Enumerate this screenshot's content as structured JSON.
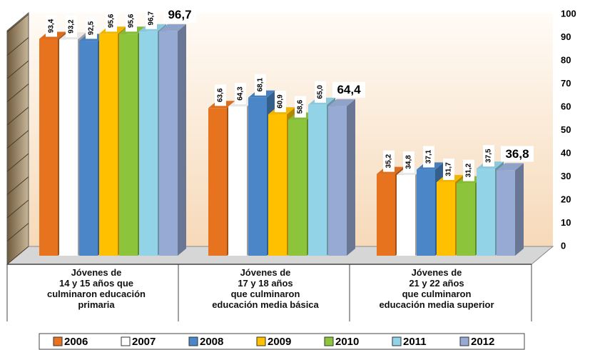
{
  "chart_data": {
    "type": "bar3d",
    "categories": [
      "Jóvenes de\n14 y 15 años que\nculminaron educación\nprimaria",
      "Jóvenes de\n17 y 18 años\nque culminaron\neducación media básica",
      "Jóvenes de\n21 y 22 años\nque culminaron\neducación media superior"
    ],
    "series": [
      {
        "name": "2006",
        "color": "#e8731f",
        "values": [
          93.4,
          63.6,
          35.2
        ],
        "value_labels": [
          "93,4",
          "63,6",
          "35,2"
        ]
      },
      {
        "name": "2007",
        "color": "#ffffff",
        "values": [
          93.2,
          64.3,
          34.8
        ],
        "value_labels": [
          "93,2",
          "64,3",
          "34,8"
        ]
      },
      {
        "name": "2008",
        "color": "#4a86c8",
        "values": [
          92.5,
          68.1,
          37.1
        ],
        "value_labels": [
          "92,5",
          "68,1",
          "37,1"
        ]
      },
      {
        "name": "2009",
        "color": "#ffc000",
        "values": [
          95.6,
          60.9,
          31.7
        ],
        "value_labels": [
          "95,6",
          "60,9",
          "31,7"
        ]
      },
      {
        "name": "2010",
        "color": "#8cc43c",
        "values": [
          95.6,
          58.6,
          31.2
        ],
        "value_labels": [
          "95,6",
          "58,6",
          "31,2"
        ]
      },
      {
        "name": "2011",
        "color": "#92d3e8",
        "values": [
          96.7,
          65.0,
          37.5
        ],
        "value_labels": [
          "96,7",
          "65,0",
          "37,5"
        ]
      },
      {
        "name": "2012",
        "color": "#97aad4",
        "values": [
          96.7,
          64.4,
          36.8
        ],
        "value_labels": [
          "96,7",
          "64,4",
          "36,8"
        ]
      }
    ],
    "ylim": [
      0,
      100
    ],
    "yticks": [
      0,
      10,
      20,
      30,
      40,
      50,
      60,
      70,
      80,
      90,
      100
    ],
    "legend": "bottom"
  }
}
